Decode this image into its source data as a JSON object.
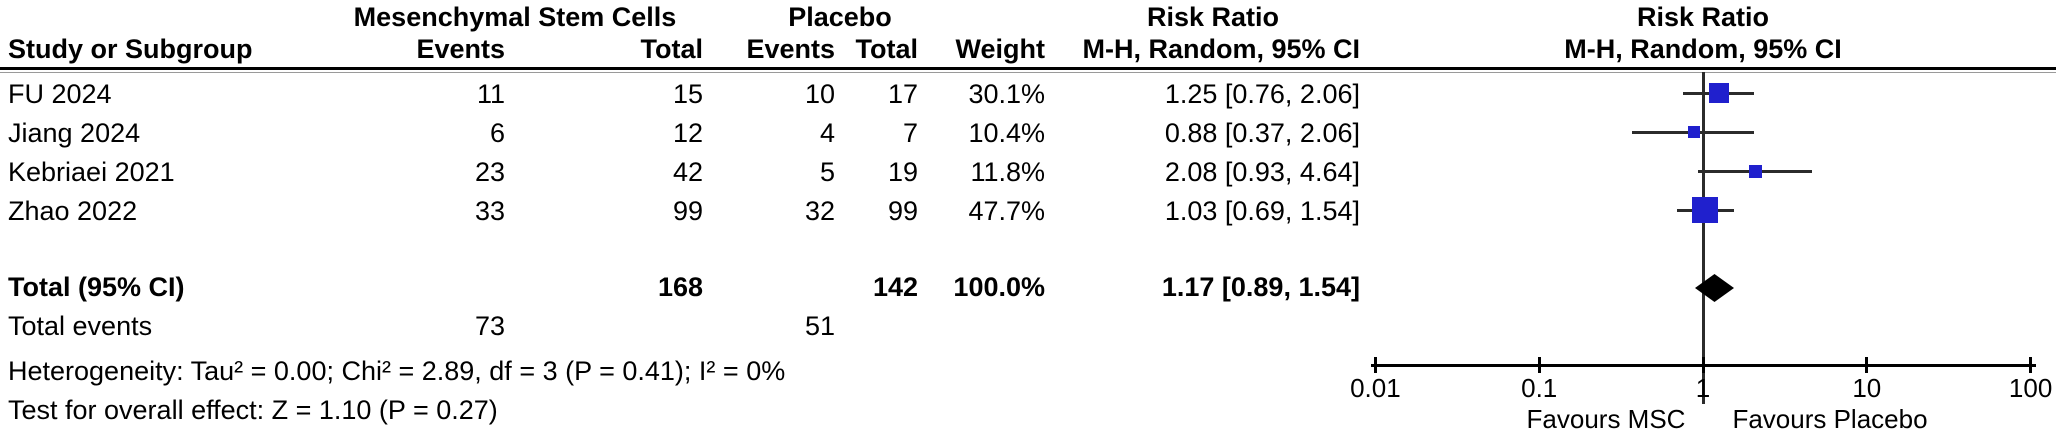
{
  "header": {
    "group1": "Mesenchymal Stem Cells",
    "group2": "Placebo",
    "risk_ratio_text_col": "Risk Ratio",
    "risk_ratio_plot_col": "Risk Ratio",
    "col_study": "Study or Subgroup",
    "col_events": "Events",
    "col_total": "Total",
    "col_events2": "Events",
    "col_total2": "Total",
    "col_weight": "Weight",
    "col_mh_text": "M-H, Random, 95% CI",
    "col_mh_plot": "M-H, Random, 95% CI"
  },
  "table": {
    "rows": [
      {
        "study": "FU 2024",
        "msc_events": "11",
        "msc_total": "15",
        "pbo_events": "10",
        "pbo_total": "17",
        "weight": "30.1%",
        "rr_ci": "1.25 [0.76, 2.06]"
      },
      {
        "study": "Jiang 2024",
        "msc_events": "6",
        "msc_total": "12",
        "pbo_events": "4",
        "pbo_total": "7",
        "weight": "10.4%",
        "rr_ci": "0.88 [0.37, 2.06]"
      },
      {
        "study": "Kebriaei 2021",
        "msc_events": "23",
        "msc_total": "42",
        "pbo_events": "5",
        "pbo_total": "19",
        "weight": "11.8%",
        "rr_ci": "2.08 [0.93, 4.64]"
      },
      {
        "study": "Zhao 2022",
        "msc_events": "33",
        "msc_total": "99",
        "pbo_events": "32",
        "pbo_total": "99",
        "weight": "47.7%",
        "rr_ci": "1.03 [0.69, 1.54]"
      }
    ],
    "total": {
      "label": "Total (95% CI)",
      "msc_total": "168",
      "pbo_total": "142",
      "weight": "100.0%",
      "rr_ci": "1.17 [0.89, 1.54]"
    },
    "total_events": {
      "label": "Total events",
      "msc": "73",
      "pbo": "51"
    }
  },
  "footer": {
    "heterogeneity": "Heterogeneity: Tau² = 0.00; Chi² = 2.89, df = 3 (P = 0.41); I² = 0%",
    "overall_effect": "Test for overall effect: Z = 1.10 (P = 0.27)"
  },
  "chart_data": {
    "type": "scatter",
    "subtype": "forest-plot",
    "effect_measure": "Risk Ratio, M-H, Random, 95% CI",
    "x_scale": "log10",
    "xlim": [
      0.01,
      100
    ],
    "axis_ticks": [
      0.01,
      0.1,
      1,
      10,
      100
    ],
    "axis_tick_labels": [
      "0.01",
      "0.1",
      "1",
      "10",
      "100"
    ],
    "no_effect_value": 1,
    "favours_left": "Favours MSC",
    "favours_right": "Favours Placebo",
    "studies": [
      {
        "name": "FU 2024",
        "msc_events": 11,
        "msc_total": 15,
        "pbo_events": 10,
        "pbo_total": 17,
        "weight_pct": 30.1,
        "rr": 1.25,
        "ci_low": 0.76,
        "ci_high": 2.06
      },
      {
        "name": "Jiang 2024",
        "msc_events": 6,
        "msc_total": 12,
        "pbo_events": 4,
        "pbo_total": 7,
        "weight_pct": 10.4,
        "rr": 0.88,
        "ci_low": 0.37,
        "ci_high": 2.06
      },
      {
        "name": "Kebriaei 2021",
        "msc_events": 23,
        "msc_total": 42,
        "pbo_events": 5,
        "pbo_total": 19,
        "weight_pct": 11.8,
        "rr": 2.08,
        "ci_low": 0.93,
        "ci_high": 4.64
      },
      {
        "name": "Zhao 2022",
        "msc_events": 33,
        "msc_total": 99,
        "pbo_events": 32,
        "pbo_total": 99,
        "weight_pct": 47.7,
        "rr": 1.03,
        "ci_low": 0.69,
        "ci_high": 1.54
      }
    ],
    "total": {
      "name": "Total (95% CI)",
      "msc_total": 168,
      "pbo_total": 142,
      "weight_pct": 100.0,
      "rr": 1.17,
      "ci_low": 0.89,
      "ci_high": 1.54
    },
    "total_events": {
      "msc": 73,
      "pbo": 51
    },
    "heterogeneity": {
      "tau2": 0.0,
      "chi2": 2.89,
      "df": 3,
      "p": 0.41,
      "i2_pct": 0
    },
    "overall_effect": {
      "z": 1.1,
      "p": 0.27
    },
    "marker_color": "#2020cd",
    "diamond_color": "#000000",
    "line_color": "#2b2b2b",
    "legend_position": "none",
    "grid": false
  }
}
